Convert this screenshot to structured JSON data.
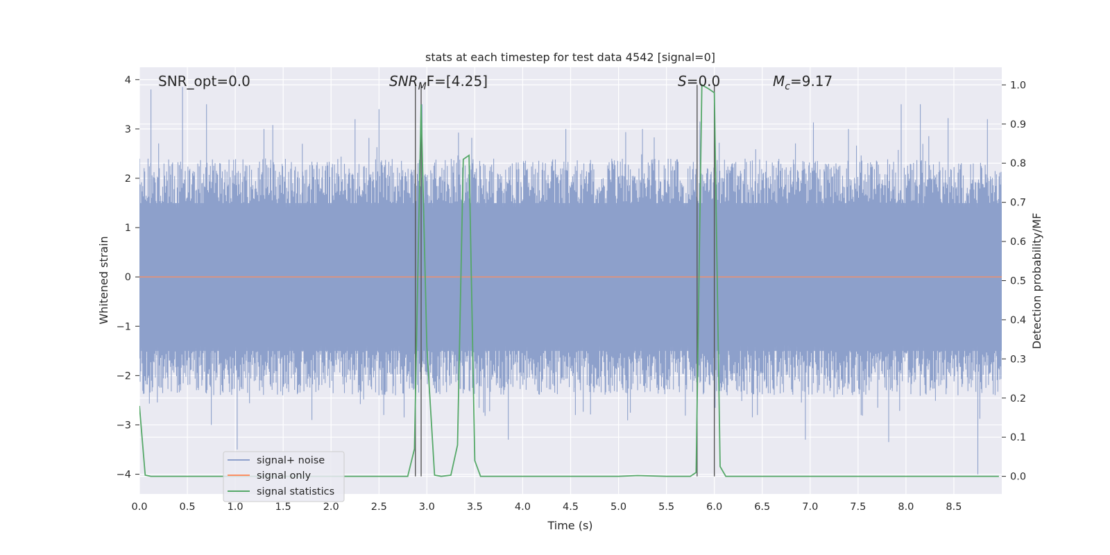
{
  "chart_data": {
    "type": "line",
    "title": "stats at each timestep for test data 4542 [signal=0]",
    "xlabel": "Time (s)",
    "ylabel_left": "Whitened strain",
    "ylabel_right": "Detection probability/MF",
    "xlim": [
      0.0,
      9.0
    ],
    "ylim_left": [
      -4.4,
      4.25
    ],
    "ylim_right": [
      -0.045,
      1.045
    ],
    "x_ticks": [
      "0.0",
      "0.5",
      "1.0",
      "1.5",
      "2.0",
      "2.5",
      "3.0",
      "3.5",
      "4.0",
      "4.5",
      "5.0",
      "5.5",
      "6.0",
      "6.5",
      "7.0",
      "7.5",
      "8.0",
      "8.5"
    ],
    "y_left_ticks": [
      "−4",
      "−3",
      "−2",
      "−1",
      "0",
      "1",
      "2",
      "3",
      "4"
    ],
    "y_right_ticks": [
      "0.0",
      "0.1",
      "0.2",
      "0.3",
      "0.4",
      "0.5",
      "0.6",
      "0.7",
      "0.8",
      "0.9",
      "1.0"
    ],
    "grid": true,
    "legend_position": "lower-left",
    "annotations": {
      "snr_opt": "SNR_opt=0.0",
      "snr_mf_main": "SNR",
      "snr_mf_sub": "M",
      "snr_mf_rest": "F=[4.25]",
      "s_main": "S",
      "s_rest": "=0.0",
      "mc_main": "M",
      "mc_sub": "c",
      "mc_rest": "=9.17"
    },
    "vlines": [
      2.88,
      2.94,
      5.82,
      6.0
    ],
    "series": [
      {
        "name": "signal+ noise",
        "axis": "left",
        "color": "#8da0cb",
        "style": "noise band, approximately ±1.5 with spikes up to about ±3.9",
        "spikes": [
          [
            0.12,
            3.8
          ],
          [
            0.45,
            3.85
          ],
          [
            0.7,
            3.5
          ],
          [
            1.3,
            3.0
          ],
          [
            1.7,
            2.7
          ],
          [
            2.25,
            3.2
          ],
          [
            2.5,
            3.4
          ],
          [
            2.95,
            3.5
          ],
          [
            4.45,
            3.0
          ],
          [
            5.25,
            3.0
          ],
          [
            5.85,
            3.15
          ],
          [
            7.4,
            3.0
          ],
          [
            7.95,
            3.5
          ],
          [
            8.15,
            3.5
          ],
          [
            8.85,
            3.2
          ],
          [
            1.02,
            -3.5
          ],
          [
            0.75,
            -3.0
          ],
          [
            3.85,
            -3.3
          ],
          [
            6.45,
            -2.8
          ],
          [
            6.95,
            -3.3
          ],
          [
            7.82,
            -3.35
          ],
          [
            8.75,
            -4.0
          ],
          [
            4.55,
            -2.8
          ],
          [
            2.55,
            -2.8
          ],
          [
            1.8,
            -2.9
          ]
        ]
      },
      {
        "name": "signal only",
        "axis": "left",
        "color": "#fc8d62",
        "x": [
          0.0,
          9.0
        ],
        "y": [
          0.0,
          0.0
        ]
      },
      {
        "name": "signal statistics",
        "axis": "right",
        "color": "#55a868",
        "x": [
          0.0,
          0.06,
          0.12,
          0.2,
          0.5,
          1.0,
          1.5,
          2.0,
          2.5,
          2.8,
          2.87,
          2.94,
          3.0,
          3.08,
          3.15,
          3.25,
          3.32,
          3.38,
          3.44,
          3.5,
          3.56,
          3.7,
          4.0,
          4.5,
          5.0,
          5.2,
          5.5,
          5.75,
          5.81,
          5.87,
          5.94,
          6.0,
          6.06,
          6.12,
          6.3,
          6.8,
          7.5,
          8.0,
          8.5,
          8.97
        ],
        "y": [
          0.18,
          0.003,
          0.0,
          0.0,
          0.0,
          0.0,
          0.0,
          0.0,
          0.0,
          0.0,
          0.07,
          0.95,
          0.33,
          0.003,
          0.0,
          0.003,
          0.08,
          0.81,
          0.82,
          0.04,
          0.0,
          0.0,
          0.0,
          0.0,
          0.0,
          0.002,
          0.0,
          0.0,
          0.01,
          1.0,
          0.99,
          0.98,
          0.025,
          0.0,
          0.0,
          0.0,
          0.0,
          0.0,
          0.0,
          0.0
        ]
      }
    ]
  }
}
